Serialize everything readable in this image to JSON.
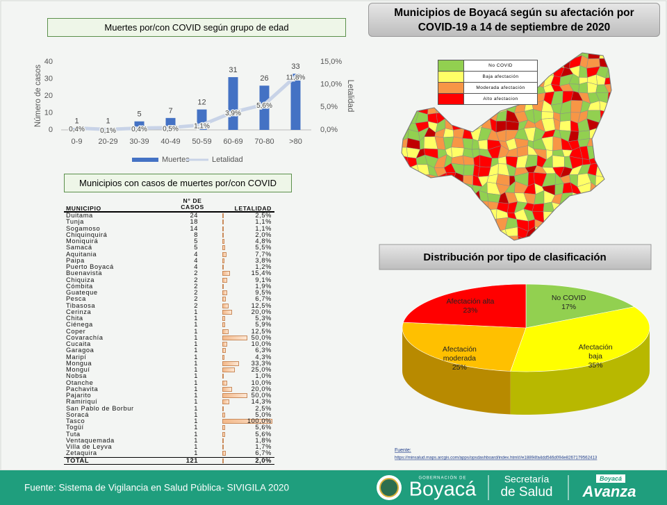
{
  "chart_data": [
    {
      "type": "bar",
      "title": "Muertes por/con COVID según grupo de edad",
      "categories": [
        "0-9",
        "20-29",
        "30-39",
        "40-49",
        "50-59",
        "60-69",
        "70-80",
        ">80"
      ],
      "series": [
        {
          "name": "Muertes",
          "color": "#4472c4",
          "values": [
            1,
            1,
            5,
            7,
            12,
            31,
            26,
            33
          ]
        },
        {
          "name": "Letalidad",
          "color": "#c8d3e7",
          "type": "line",
          "axis": "y2",
          "values": [
            0.4,
            0.1,
            0.4,
            0.5,
            1.1,
            3.9,
            5.6,
            11.8
          ],
          "value_labels": [
            "0,4%",
            "0,1%",
            "0,4%",
            "0,5%",
            "1,1%",
            "3,9%",
            "5,6%",
            "11,8%"
          ]
        }
      ],
      "ylabel": "Número de casos",
      "y2label": "Letalidad",
      "ylim": [
        0,
        40
      ],
      "yticks": [
        0,
        10,
        20,
        30,
        40
      ],
      "y2lim": [
        0,
        15
      ],
      "y2ticks": [
        {
          "value": 0,
          "label": "0,0%"
        },
        {
          "value": 5,
          "label": "5,0%"
        },
        {
          "value": 10,
          "label": "10,0%"
        },
        {
          "value": 15,
          "label": "15,0%"
        }
      ],
      "legend": "bottom"
    },
    {
      "type": "pie",
      "title": "Distribución por tipo de clasificación",
      "categories": [
        "No COVID",
        "Afectación baja",
        "Afectación moderada",
        "Afectación alta"
      ],
      "values": [
        17,
        35,
        25,
        23
      ],
      "value_labels": [
        "17%",
        "35%",
        "25%",
        "23%"
      ],
      "colors": [
        "#92d050",
        "#ffff00",
        "#ffc000",
        "#ff0000"
      ]
    }
  ],
  "table": {
    "title": "Municipios con casos de muertes por/con COVID",
    "columns": [
      "MUNICIPIO",
      "N° DE CASOS",
      "LETALIDAD"
    ],
    "rows": [
      [
        "Duitama",
        24,
        "2,5%"
      ],
      [
        "Tunja",
        18,
        "1,1%"
      ],
      [
        "Sogamoso",
        14,
        "1,1%"
      ],
      [
        "Chiquinquirá",
        8,
        "2,0%"
      ],
      [
        "Moniquirá",
        5,
        "4,8%"
      ],
      [
        "Samacá",
        5,
        "5,5%"
      ],
      [
        "Aquitania",
        4,
        "7,7%"
      ],
      [
        "Paipa",
        4,
        "3,8%"
      ],
      [
        "Puerto Boyacá",
        4,
        "1,2%"
      ],
      [
        "Buenavista",
        2,
        "15,4%"
      ],
      [
        "Chiquiza",
        2,
        "9,1%"
      ],
      [
        "Cómbita",
        2,
        "1,9%"
      ],
      [
        "Guateque",
        2,
        "9,5%"
      ],
      [
        "Pesca",
        2,
        "6,7%"
      ],
      [
        "Tibasosa",
        2,
        "12,5%"
      ],
      [
        "Cerinza",
        1,
        "20,0%"
      ],
      [
        "Chita",
        1,
        "5,3%"
      ],
      [
        "Ciénega",
        1,
        "5,9%"
      ],
      [
        "Coper",
        1,
        "12,5%"
      ],
      [
        "Covarachía",
        1,
        "50,0%"
      ],
      [
        "Cucaita",
        1,
        "10,0%"
      ],
      [
        "Garagoa",
        1,
        "6,3%"
      ],
      [
        "Maripí",
        1,
        "4,3%"
      ],
      [
        "Mongua",
        1,
        "33,3%"
      ],
      [
        "Monguí",
        1,
        "25,0%"
      ],
      [
        "Nobsa",
        1,
        "1,0%"
      ],
      [
        "Otanche",
        1,
        "10,0%"
      ],
      [
        "Pachavita",
        1,
        "20,0%"
      ],
      [
        "Pajarito",
        1,
        "50,0%"
      ],
      [
        "Ramiriquí",
        1,
        "14,3%"
      ],
      [
        "San Pablo de Borbur",
        1,
        "2,5%"
      ],
      [
        "Soracá",
        1,
        "5,0%"
      ],
      [
        "Tasco",
        1,
        "100,0%"
      ],
      [
        "Togüí",
        1,
        "5,6%"
      ],
      [
        "Tuta",
        1,
        "5,6%"
      ],
      [
        "Ventaquemada",
        1,
        "1,8%"
      ],
      [
        "Villa de Leyva",
        1,
        "1,7%"
      ],
      [
        "Zetaquira",
        1,
        "6,7%"
      ]
    ],
    "total": [
      "TOTAL",
      121,
      "2,0%"
    ]
  },
  "map": {
    "title": "Municipios de Boyacá según su afectación por COVID-19 a 14 de septiembre de 2020",
    "legend": [
      {
        "label": "No COVID",
        "color": "#92d050"
      },
      {
        "label": "Baja afectación",
        "color": "#ffff66"
      },
      {
        "label": "Moderada afectación",
        "color": "#f79646"
      },
      {
        "label": "Alto afectacion",
        "color": "#ff0000"
      }
    ]
  },
  "source": {
    "label": "Fuente:",
    "url": "https://minsalud.maps.arcgis.com/apps/opsdashboard/index.html#/e18894fa4dd546d094e8267179562413"
  },
  "footer": {
    "source": "Fuente: Sistema de Vigilancia en Salud Pública- SIVIGILA 2020",
    "logo": {
      "top": "GOBERNACIÓN DE",
      "name": "Boyacá",
      "dept1": "Secretaría",
      "dept2": "de Salud",
      "slogan_top": "Boyacá",
      "slogan": "Avanza"
    }
  }
}
